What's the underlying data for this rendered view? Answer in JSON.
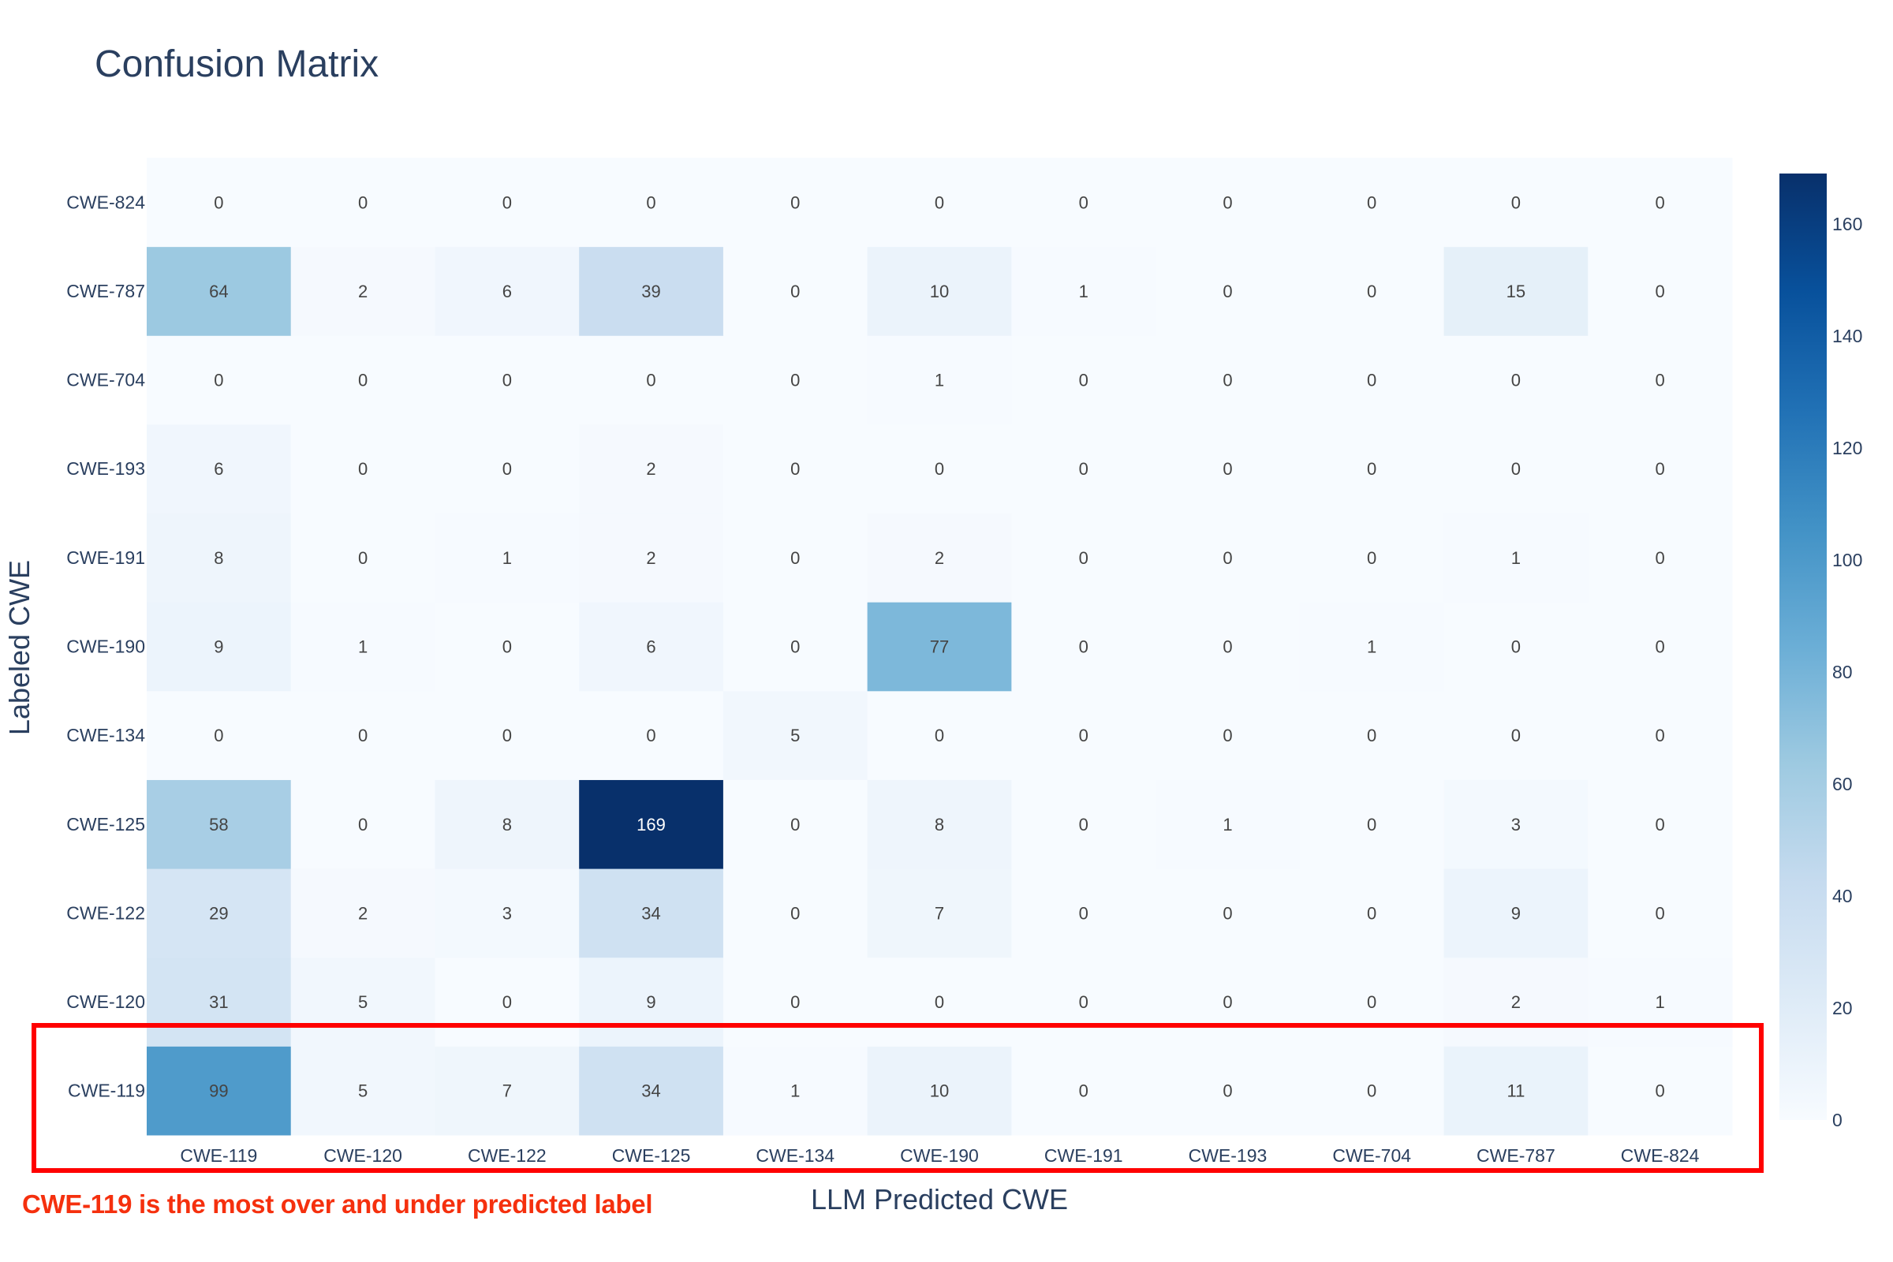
{
  "chart_data": {
    "type": "heatmap",
    "title": "Confusion Matrix",
    "xlabel": "LLM Predicted CWE",
    "ylabel": "Labeled CWE",
    "x_categories": [
      "CWE-119",
      "CWE-120",
      "CWE-122",
      "CWE-125",
      "CWE-134",
      "CWE-190",
      "CWE-191",
      "CWE-193",
      "CWE-704",
      "CWE-787",
      "CWE-824"
    ],
    "y_categories": [
      "CWE-119",
      "CWE-120",
      "CWE-122",
      "CWE-125",
      "CWE-134",
      "CWE-190",
      "CWE-191",
      "CWE-193",
      "CWE-704",
      "CWE-787",
      "CWE-824"
    ],
    "z": [
      [
        99,
        5,
        7,
        34,
        1,
        10,
        0,
        0,
        0,
        11,
        0
      ],
      [
        31,
        5,
        0,
        9,
        0,
        0,
        0,
        0,
        0,
        2,
        1
      ],
      [
        29,
        2,
        3,
        34,
        0,
        7,
        0,
        0,
        0,
        9,
        0
      ],
      [
        58,
        0,
        8,
        169,
        0,
        8,
        0,
        1,
        0,
        3,
        0
      ],
      [
        0,
        0,
        0,
        0,
        5,
        0,
        0,
        0,
        0,
        0,
        0
      ],
      [
        9,
        1,
        0,
        6,
        0,
        77,
        0,
        0,
        1,
        0,
        0
      ],
      [
        8,
        0,
        1,
        2,
        0,
        2,
        0,
        0,
        0,
        1,
        0
      ],
      [
        6,
        0,
        0,
        2,
        0,
        0,
        0,
        0,
        0,
        0,
        0
      ],
      [
        0,
        0,
        0,
        0,
        0,
        1,
        0,
        0,
        0,
        0,
        0
      ],
      [
        64,
        2,
        6,
        39,
        0,
        10,
        1,
        0,
        0,
        15,
        0
      ],
      [
        0,
        0,
        0,
        0,
        0,
        0,
        0,
        0,
        0,
        0,
        0
      ]
    ],
    "colorscale": "Blues",
    "zmin": 0,
    "zmax": 169,
    "colorbar_ticks": [
      0,
      20,
      40,
      60,
      80,
      100,
      120,
      140,
      160
    ],
    "y_axis_order": "bottom-to-top"
  },
  "annotation": {
    "text": "CWE-119 is the most over and under predicted label",
    "highlight_row": "CWE-119",
    "color": "#f5300e",
    "box_color": "#ff0000"
  },
  "colors": {
    "text": "#2a3f5f",
    "cell_text": "#444444"
  }
}
